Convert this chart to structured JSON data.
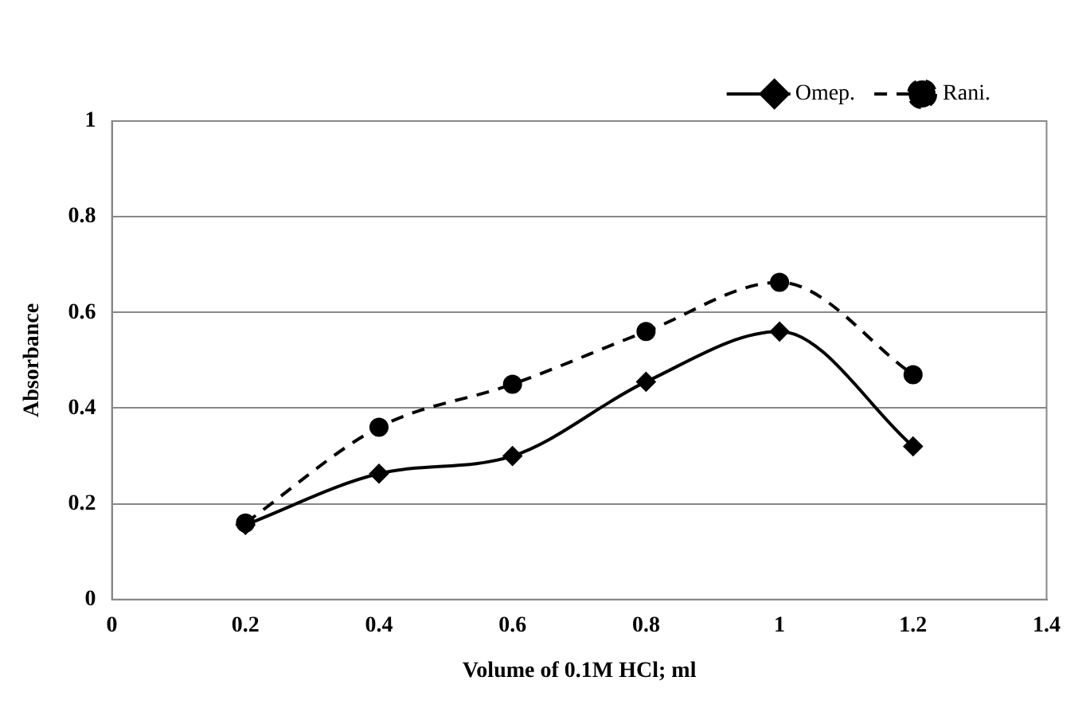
{
  "chart_data": {
    "type": "line",
    "xlabel": "Volume of 0.1M HCl; ml",
    "ylabel": "Absorbance",
    "x": [
      0.2,
      0.4,
      0.6,
      0.8,
      1.0,
      1.2
    ],
    "series": [
      {
        "name": "Omep.",
        "color": "#000000",
        "marker": "diamond",
        "line_style": "solid",
        "values": [
          0.156,
          0.263,
          0.3,
          0.455,
          0.56,
          0.32
        ]
      },
      {
        "name": "Rani.",
        "color": "#000000",
        "marker": "circle",
        "line_style": "dashed",
        "values": [
          0.16,
          0.36,
          0.45,
          0.56,
          0.663,
          0.47
        ]
      }
    ],
    "xlim": [
      0,
      1.4
    ],
    "xticks": [
      0,
      0.2,
      0.4,
      0.6,
      0.8,
      1,
      1.2,
      1.4
    ],
    "ylim": [
      0,
      1
    ],
    "yticks": [
      0,
      0.2,
      0.4,
      0.6,
      0.8,
      1
    ],
    "grid": "y",
    "legend": "top right"
  }
}
